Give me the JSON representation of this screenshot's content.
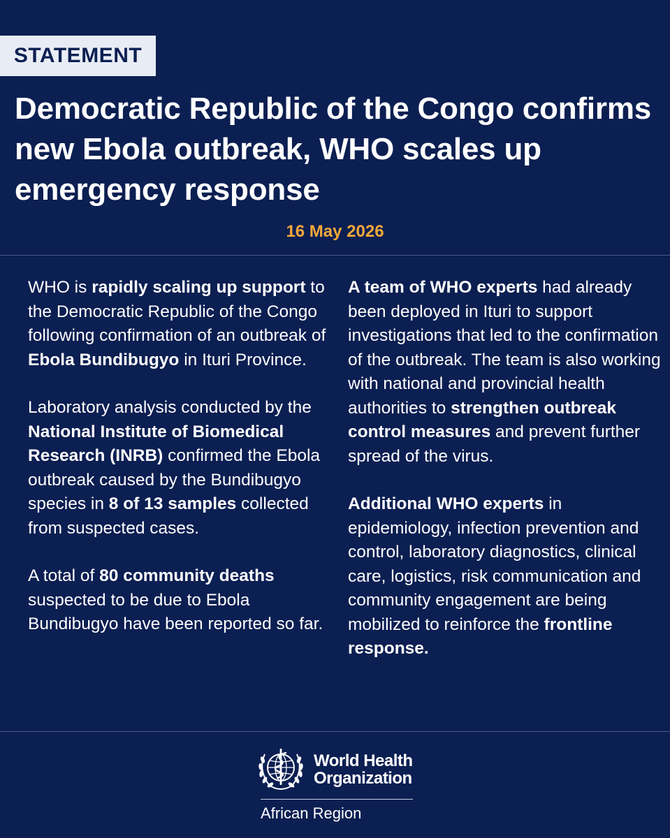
{
  "badge": "STATEMENT",
  "title": "Democratic Republic of the Congo confirms new Ebola outbreak, WHO scales up emergency response",
  "date": "16 May 2026",
  "left": {
    "p1": {
      "a": "WHO is ",
      "b": "rapidly scaling up support",
      "c": " to the Democratic Republic of the Congo following confirmation of an outbreak of ",
      "d": "Ebola Bundibugyo",
      "e": " in Ituri Province."
    },
    "p2": {
      "a": "Laboratory analysis conducted by the ",
      "b": "National Institute of Biomedical Research (INRB)",
      "c": " confirmed the Ebola outbreak caused by the Bundibugyo species in ",
      "d": "8 of 13 samples",
      "e": " collected from suspected cases."
    },
    "p3": {
      "a": "A total of ",
      "b": "80 community deaths",
      "c": " suspected to be due to Ebola Bundibugyo have been reported so far."
    }
  },
  "right": {
    "p1": {
      "a": "A team of WHO experts",
      "b": " had already been deployed in Ituri to support investigations that led to the confirmation of the outbreak. The team is also working with national and provincial health authorities to ",
      "c": "strengthen outbreak control measures",
      "d": " and prevent further spread of the virus."
    },
    "p2": {
      "a": "Additional WHO experts",
      "b": " in epidemiology, infection prevention and control, laboratory diagnostics, clinical care, logistics, risk communication and community engagement are being mobilized to reinforce the ",
      "c": "frontline response."
    }
  },
  "footer": {
    "org_line1": "World Health",
    "org_line2": "Organization",
    "region": "African Region",
    "logo_icon": "who-emblem-icon"
  },
  "colors": {
    "background": "#0c1f52",
    "accent": "#f2a83b",
    "badge_bg": "#e8ecf5"
  }
}
